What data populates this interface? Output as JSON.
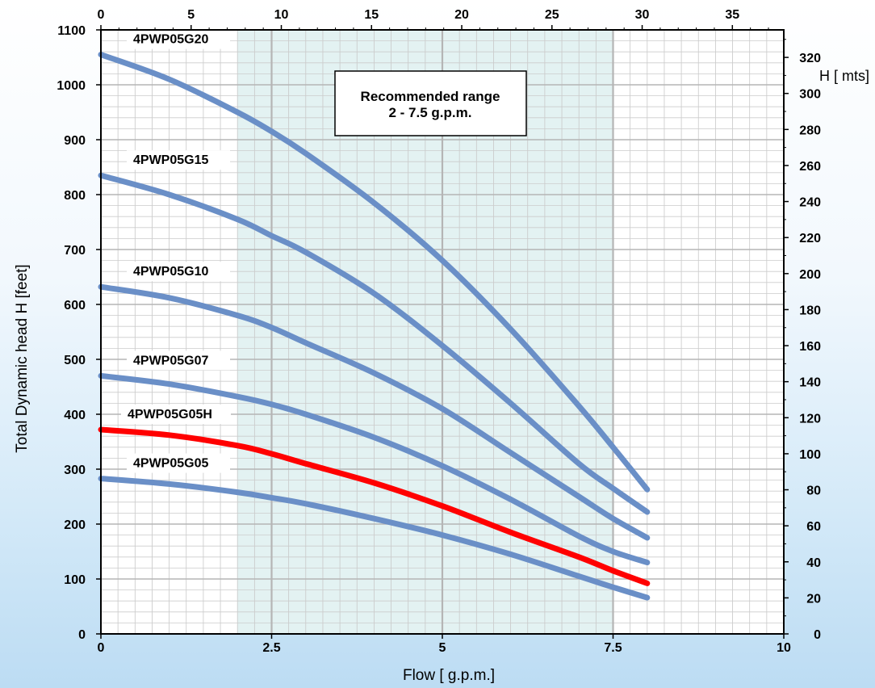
{
  "chart_data": {
    "type": "line",
    "xlabel": "Flow [ g.p.m.]",
    "ylabel": "Total Dynamic head H [feet]",
    "y2label": "H [ mts]",
    "xlim": [
      0,
      10
    ],
    "ylim": [
      0,
      1100
    ],
    "x_ticks": [
      "0",
      "2.5",
      "5",
      "7.5",
      "10"
    ],
    "x2_ticks": [
      "0",
      "5",
      "10",
      "15",
      "20",
      "25",
      "30",
      "35"
    ],
    "x2_max": 37.85,
    "y_ticks": [
      "0",
      "100",
      "200",
      "300",
      "400",
      "500",
      "600",
      "700",
      "800",
      "900",
      "1000",
      "1100"
    ],
    "y2_ticks": [
      "0",
      "20",
      "40",
      "60",
      "80",
      "100",
      "120",
      "140",
      "160",
      "180",
      "200",
      "220",
      "240",
      "260",
      "280",
      "300",
      "320"
    ],
    "y2_max": 335.28,
    "grid": true,
    "recommended_range": {
      "x_from": 2,
      "x_to": 7.5,
      "label_line1": "Recommended range",
      "label_line2": "2 - 7.5 g.p.m."
    },
    "series": [
      {
        "name": "4PWP05G20",
        "color": "#6a8fc7",
        "x": [
          0,
          1,
          2,
          2.5,
          3,
          4,
          5,
          6,
          7,
          7.5,
          8
        ],
        "y": [
          1055,
          1010,
          950,
          915,
          875,
          785,
          680,
          555,
          415,
          340,
          263
        ]
      },
      {
        "name": "4PWP05G15",
        "color": "#6a8fc7",
        "x": [
          0,
          1,
          2,
          2.5,
          3,
          4,
          5,
          6,
          7,
          7.5,
          8
        ],
        "y": [
          835,
          800,
          755,
          725,
          695,
          620,
          525,
          420,
          310,
          265,
          222
        ]
      },
      {
        "name": "4PWP05G10",
        "color": "#6a8fc7",
        "x": [
          0,
          1,
          2,
          2.5,
          3,
          4,
          5,
          6,
          7,
          7.5,
          8
        ],
        "y": [
          632,
          612,
          580,
          558,
          530,
          475,
          410,
          330,
          250,
          210,
          175
        ]
      },
      {
        "name": "4PWP05G07",
        "color": "#6a8fc7",
        "x": [
          0,
          1,
          2,
          2.5,
          3,
          4,
          5,
          6,
          7,
          7.5,
          8
        ],
        "y": [
          470,
          455,
          432,
          418,
          400,
          358,
          306,
          245,
          178,
          150,
          130
        ]
      },
      {
        "name": "4PWP05G05H",
        "color": "#ff0000",
        "x": [
          0,
          1,
          2,
          2.5,
          3,
          4,
          5,
          6,
          7,
          7.5,
          8
        ],
        "y": [
          372,
          362,
          343,
          328,
          310,
          275,
          233,
          185,
          140,
          115,
          92
        ]
      },
      {
        "name": "4PWP05G05",
        "color": "#6a8fc7",
        "x": [
          0,
          1,
          2,
          2.5,
          3,
          4,
          5,
          6,
          7,
          7.5,
          8
        ],
        "y": [
          283,
          273,
          258,
          248,
          237,
          210,
          180,
          145,
          105,
          85,
          66
        ]
      }
    ]
  }
}
